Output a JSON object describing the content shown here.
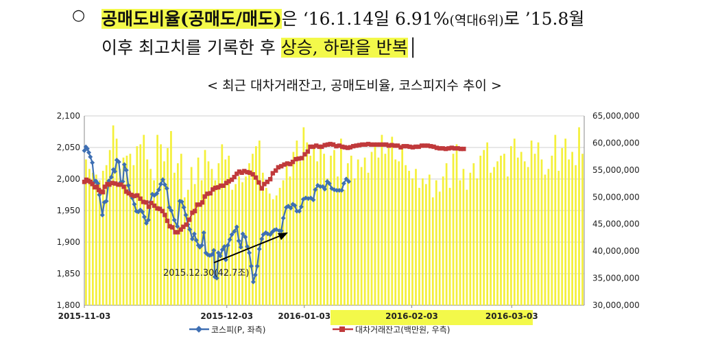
{
  "header": {
    "bullet": "○",
    "line1_bold": "공매도비율(공매도/매도)",
    "line1_rest_a": "은  ‘16.1.14일  6.91%",
    "line1_small": "(역대6위)",
    "line1_rest_b": "로  ’15.8월",
    "line2_text": "이후 최고치를 기록한 후 ",
    "line2_highlight": "상승, 하락을 반복",
    "line2_cursor": "│"
  },
  "chart_data": {
    "type": "bar+line",
    "title": "< 최근 대차거래잔고, 공매도비율, 코스피지수 추이 >",
    "left_axis": {
      "min": 1800,
      "max": 2100,
      "step": 50,
      "tick_labels": [
        "1,800",
        "1,850",
        "1,900",
        "1,950",
        "2,000",
        "2,050",
        "2,100"
      ]
    },
    "right_axis": {
      "min": 30000000,
      "max": 65000000,
      "step": 5000000,
      "tick_labels": [
        "30,000,000",
        "35,000,000",
        "40,000,000",
        "45,000,000",
        "50,000,000",
        "55,000,000",
        "60,000,000",
        "65,000,000"
      ]
    },
    "x_ticks": [
      "2015-11-03",
      "2015-12-03",
      "2016-01-03",
      "2016-02-03",
      "2016-03-03"
    ],
    "bar_values_relative": [
      0.77,
      0.72,
      0.7,
      0.69,
      0.66,
      0.71,
      0.74,
      0.82,
      0.95,
      0.88,
      0.72,
      0.78,
      0.79,
      0.8,
      0.74,
      0.84,
      0.85,
      0.9,
      0.77,
      0.72,
      0.66,
      0.9,
      0.85,
      0.76,
      0.83,
      0.92,
      0.7,
      0.75,
      0.8,
      0.57,
      0.61,
      0.73,
      0.64,
      0.78,
      0.66,
      0.82,
      0.76,
      0.72,
      0.66,
      0.75,
      0.85,
      0.77,
      0.79,
      0.61,
      0.64,
      0.68,
      0.65,
      0.68,
      0.75,
      0.8,
      0.84,
      0.87,
      0.7,
      0.62,
      0.59,
      0.56,
      0.58,
      0.62,
      0.66,
      0.74,
      0.68,
      0.81,
      0.87,
      0.76,
      0.94,
      0.86,
      0.79,
      0.84,
      0.76,
      0.83,
      0.8,
      0.67,
      0.79,
      0.82,
      0.68,
      0.88,
      0.61,
      0.75,
      0.79,
      0.67,
      0.77,
      0.73,
      0.78,
      0.7,
      0.81,
      0.84,
      0.78,
      0.9,
      0.8,
      0.83,
      0.89,
      0.77,
      0.76,
      0.85,
      0.74,
      0.71,
      0.67,
      0.72,
      0.62,
      0.67,
      0.64,
      0.69,
      0.57,
      0.66,
      0.6,
      0.68,
      0.75,
      0.62,
      0.8,
      0.85,
      0.66,
      0.72,
      0.61,
      0.7,
      0.75,
      0.67,
      0.79,
      0.82,
      0.86,
      0.7,
      0.73,
      0.76,
      0.79,
      0.8,
      0.68,
      0.84,
      0.88,
      0.78,
      0.81,
      0.76,
      0.73,
      0.87,
      0.8,
      0.86,
      0.77,
      0.69,
      0.72,
      0.79,
      0.9,
      0.71,
      0.83,
      0.88,
      0.77,
      0.81,
      0.74,
      0.94,
      0.8
    ],
    "series": [
      {
        "name": "코스피(P, 좌측)",
        "axis": "left",
        "color": "#3e6fb3",
        "marker": "diamond",
        "points": [
          [
            0,
            2045
          ],
          [
            3,
            2051
          ],
          [
            6,
            2048
          ],
          [
            9,
            2042
          ],
          [
            12,
            2035
          ],
          [
            16,
            2026
          ],
          [
            20,
            1995
          ],
          [
            23,
            1997
          ],
          [
            27,
            1993
          ],
          [
            30,
            1975
          ],
          [
            36,
            1943
          ],
          [
            40,
            1963
          ],
          [
            44,
            1965
          ],
          [
            49,
            1997
          ],
          [
            54,
            2003
          ],
          [
            58,
            2015
          ],
          [
            61,
            2012
          ],
          [
            65,
            2030
          ],
          [
            69,
            2027
          ],
          [
            73,
            1995
          ],
          [
            77,
            1996
          ],
          [
            80,
            2023
          ],
          [
            84,
            2014
          ],
          [
            88,
            1990
          ],
          [
            92,
            1976
          ],
          [
            96,
            1970
          ],
          [
            100,
            1960
          ],
          [
            104,
            1949
          ],
          [
            108,
            1948
          ],
          [
            112,
            1951
          ],
          [
            116,
            1948
          ],
          [
            120,
            1940
          ],
          [
            124,
            1930
          ],
          [
            128,
            1935
          ],
          [
            132,
            1963
          ],
          [
            136,
            1976
          ],
          [
            140,
            1974
          ],
          [
            145,
            1977
          ],
          [
            149,
            1983
          ],
          [
            153,
            1992
          ],
          [
            157,
            1999
          ],
          [
            161,
            1991
          ],
          [
            165,
            1985
          ],
          [
            170,
            1955
          ],
          [
            174,
            1950
          ],
          [
            180,
            1935
          ],
          [
            186,
            1925
          ],
          [
            191,
            1965
          ],
          [
            195,
            1964
          ],
          [
            199,
            1955
          ],
          [
            203,
            1943
          ],
          [
            207,
            1928
          ],
          [
            211,
            1920
          ],
          [
            216,
            1905
          ],
          [
            220,
            1913
          ],
          [
            224,
            1903
          ],
          [
            228,
            1895
          ],
          [
            231,
            1892
          ],
          [
            235,
            1895
          ],
          [
            239,
            1915
          ],
          [
            243,
            1883
          ],
          [
            247,
            1880
          ],
          [
            251,
            1879
          ],
          [
            255,
            1880
          ],
          [
            259,
            1887
          ],
          [
            261,
            1845
          ],
          [
            265,
            1843
          ],
          [
            268,
            1883
          ],
          [
            272,
            1878
          ],
          [
            276,
            1888
          ],
          [
            280,
            1893
          ],
          [
            283,
            1872
          ],
          [
            287,
            1895
          ],
          [
            291,
            1904
          ],
          [
            295,
            1912
          ],
          [
            300,
            1917
          ],
          [
            305,
            1924
          ],
          [
            309,
            1902
          ],
          [
            313,
            1892
          ],
          [
            317,
            1913
          ],
          [
            322,
            1908
          ],
          [
            326,
            1893
          ],
          [
            330,
            1883
          ],
          [
            334,
            1862
          ],
          [
            338,
            1837
          ],
          [
            342,
            1848
          ],
          [
            346,
            1862
          ],
          [
            350,
            1889
          ],
          [
            355,
            1905
          ],
          [
            358,
            1912
          ],
          [
            363,
            1915
          ],
          [
            367,
            1913
          ],
          [
            372,
            1912
          ],
          [
            376,
            1916
          ],
          [
            380,
            1919
          ],
          [
            384,
            1920
          ],
          [
            390,
            1918
          ],
          [
            394,
            1918
          ],
          [
            398,
            1938
          ],
          [
            404,
            1955
          ],
          [
            408,
            1957
          ],
          [
            413,
            1954
          ],
          [
            417,
            1960
          ],
          [
            421,
            1958
          ],
          [
            425,
            1949
          ],
          [
            430,
            1949
          ],
          [
            434,
            1956
          ],
          [
            438,
            1968
          ],
          [
            443,
            1970
          ],
          [
            448,
            1969
          ],
          [
            453,
            1970
          ],
          [
            458,
            1967
          ],
          [
            462,
            1983
          ],
          [
            467,
            1990
          ],
          [
            472,
            1988
          ],
          [
            477,
            1988
          ],
          [
            481,
            1984
          ],
          [
            486,
            1996
          ],
          [
            490,
            1993
          ],
          [
            495,
            1985
          ],
          [
            500,
            1983
          ],
          [
            505,
            1982
          ],
          [
            510,
            1982
          ],
          [
            515,
            1982
          ],
          [
            519,
            1993
          ],
          [
            524,
            2000
          ],
          [
            529,
            1996
          ]
        ]
      },
      {
        "name": "대차거래잔고(백만원, 우측)",
        "axis": "right",
        "color": "#c0393b",
        "marker": "square",
        "points": [
          [
            0,
            52.8
          ],
          [
            4,
            53.2
          ],
          [
            8,
            53.0
          ],
          [
            12,
            52.8
          ],
          [
            16,
            52.4
          ],
          [
            21,
            51.8
          ],
          [
            25,
            51.9
          ],
          [
            29,
            51.3
          ],
          [
            33,
            51.0
          ],
          [
            37,
            50.9
          ],
          [
            41,
            51.9
          ],
          [
            46,
            52.4
          ],
          [
            50,
            52.3
          ],
          [
            56,
            52.6
          ],
          [
            62,
            52.5
          ],
          [
            68,
            52.3
          ],
          [
            73,
            52.3
          ],
          [
            79,
            51.9
          ],
          [
            84,
            51.0
          ],
          [
            89,
            50.7
          ],
          [
            94,
            50.4
          ],
          [
            100,
            50.2
          ],
          [
            106,
            50.3
          ],
          [
            112,
            49.7
          ],
          [
            118,
            49.1
          ],
          [
            124,
            49.0
          ],
          [
            129,
            48.2
          ],
          [
            134,
            48.9
          ],
          [
            140,
            48.4
          ],
          [
            146,
            47.9
          ],
          [
            151,
            47.8
          ],
          [
            156,
            47.4
          ],
          [
            161,
            46.7
          ],
          [
            166,
            45.6
          ],
          [
            171,
            44.6
          ],
          [
            176,
            44.4
          ],
          [
            182,
            43.5
          ],
          [
            187,
            43.5
          ],
          [
            193,
            44.0
          ],
          [
            198,
            44.5
          ],
          [
            204,
            44.9
          ],
          [
            210,
            45.8
          ],
          [
            216,
            47.1
          ],
          [
            221,
            47.4
          ],
          [
            226,
            48.6
          ],
          [
            231,
            48.6
          ],
          [
            236,
            49.0
          ],
          [
            241,
            50.1
          ],
          [
            246,
            50.6
          ],
          [
            252,
            50.7
          ],
          [
            257,
            51.4
          ],
          [
            262,
            51.7
          ],
          [
            268,
            51.8
          ],
          [
            273,
            52.1
          ],
          [
            278,
            52.1
          ],
          [
            284,
            52.6
          ],
          [
            289,
            52.9
          ],
          [
            295,
            53.2
          ],
          [
            300,
            53.7
          ],
          [
            305,
            54.3
          ],
          [
            310,
            54.7
          ],
          [
            315,
            54.5
          ],
          [
            320,
            54.8
          ],
          [
            326,
            54.6
          ],
          [
            331,
            54.5
          ],
          [
            337,
            54.2
          ],
          [
            343,
            53.6
          ],
          [
            349,
            52.7
          ],
          [
            355,
            51.6
          ],
          [
            360,
            52.4
          ],
          [
            366,
            52.8
          ],
          [
            372,
            53.3
          ],
          [
            377,
            54.4
          ],
          [
            383,
            54.9
          ],
          [
            388,
            55.5
          ],
          [
            394,
            55.7
          ],
          [
            400,
            56.0
          ],
          [
            406,
            56.2
          ],
          [
            412,
            56.1
          ],
          [
            417,
            56.5
          ],
          [
            423,
            57.0
          ],
          [
            429,
            57.1
          ],
          [
            435,
            57.2
          ],
          [
            441,
            57.9
          ],
          [
            447,
            58.4
          ],
          [
            452,
            59.3
          ],
          [
            458,
            59.3
          ],
          [
            464,
            59.5
          ],
          [
            470,
            59.3
          ],
          [
            475,
            59.3
          ],
          [
            481,
            59.6
          ],
          [
            487,
            59.7
          ],
          [
            492,
            59.8
          ],
          [
            498,
            59.7
          ],
          [
            504,
            59.4
          ],
          [
            510,
            59.5
          ],
          [
            516,
            59.3
          ],
          [
            521,
            59.2
          ],
          [
            527,
            59.1
          ],
          [
            532,
            59.2
          ],
          [
            538,
            59.4
          ],
          [
            544,
            59.5
          ],
          [
            550,
            59.6
          ],
          [
            556,
            59.7
          ],
          [
            562,
            59.7
          ],
          [
            568,
            59.8
          ],
          [
            574,
            59.7
          ],
          [
            580,
            59.7
          ],
          [
            586,
            59.7
          ],
          [
            592,
            59.7
          ],
          [
            598,
            59.7
          ],
          [
            604,
            59.7
          ],
          [
            609,
            59.5
          ],
          [
            615,
            59.6
          ],
          [
            621,
            59.5
          ],
          [
            627,
            59.5
          ],
          [
            633,
            59.2
          ],
          [
            639,
            59.4
          ],
          [
            645,
            59.4
          ],
          [
            651,
            59.3
          ],
          [
            657,
            59.2
          ],
          [
            663,
            59.3
          ],
          [
            669,
            59.3
          ],
          [
            675,
            59.5
          ],
          [
            681,
            59.5
          ],
          [
            687,
            59.5
          ],
          [
            693,
            59.4
          ],
          [
            699,
            59.3
          ],
          [
            705,
            59.1
          ],
          [
            711,
            59.0
          ],
          [
            717,
            59.0
          ],
          [
            723,
            58.9
          ],
          [
            729,
            59.0
          ],
          [
            735,
            59.1
          ],
          [
            741,
            59.0
          ],
          [
            747,
            59.0
          ],
          [
            753,
            58.9
          ],
          [
            759,
            58.9
          ]
        ]
      }
    ],
    "annotation": {
      "text": "2015.12.30(42.7조)"
    },
    "legend": [
      "코스피(P, 좌측)",
      "대차거래잔고(백만원, 우측)"
    ]
  }
}
